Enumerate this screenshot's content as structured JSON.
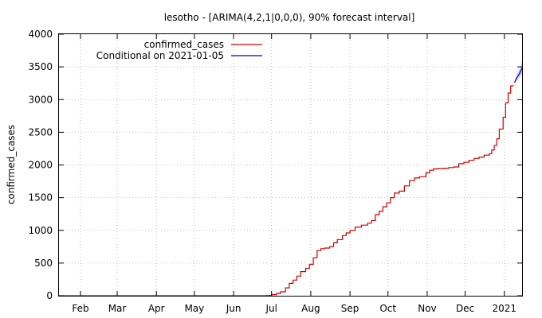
{
  "chart_data": {
    "type": "line",
    "title": "lesotho -  [ARIMA(4,2,1|0,0,0), 90% forecast interval]",
    "xlabel": "",
    "ylabel": "confirmed_cases",
    "ylim": [
      0,
      4000
    ],
    "yticks": [
      0,
      500,
      1000,
      1500,
      2000,
      2500,
      3000,
      3500,
      4000
    ],
    "xlim": [
      "2021-01-15",
      "2021-01-06"
    ],
    "xticks": [
      {
        "label": "Feb",
        "date": "2020-02-01"
      },
      {
        "label": "Mar",
        "date": "2020-03-01"
      },
      {
        "label": "Apr",
        "date": "2020-04-01"
      },
      {
        "label": "May",
        "date": "2020-05-01"
      },
      {
        "label": "Jun",
        "date": "2020-06-01"
      },
      {
        "label": "Jul",
        "date": "2020-07-01"
      },
      {
        "label": "Aug",
        "date": "2020-08-01"
      },
      {
        "label": "Sep",
        "date": "2020-09-01"
      },
      {
        "label": "Oct",
        "date": "2020-10-01"
      },
      {
        "label": "Nov",
        "date": "2020-11-01"
      },
      {
        "label": "Dec",
        "date": "2020-12-01"
      },
      {
        "label": "2021",
        "date": "2021-01-01"
      }
    ],
    "grid": true,
    "legend": "top-left",
    "series": [
      {
        "name": "confirmed_cases",
        "color": "#cc0000",
        "step": true,
        "points": [
          [
            "2020-01-15",
            0
          ],
          [
            "2020-06-20",
            0
          ],
          [
            "2020-06-27",
            4
          ],
          [
            "2020-07-01",
            17
          ],
          [
            "2020-07-05",
            35
          ],
          [
            "2020-07-08",
            60
          ],
          [
            "2020-07-12",
            120
          ],
          [
            "2020-07-15",
            190
          ],
          [
            "2020-07-18",
            240
          ],
          [
            "2020-07-21",
            300
          ],
          [
            "2020-07-24",
            370
          ],
          [
            "2020-07-28",
            420
          ],
          [
            "2020-07-31",
            480
          ],
          [
            "2020-08-03",
            580
          ],
          [
            "2020-08-06",
            690
          ],
          [
            "2020-08-09",
            720
          ],
          [
            "2020-08-12",
            730
          ],
          [
            "2020-08-16",
            750
          ],
          [
            "2020-08-19",
            810
          ],
          [
            "2020-08-22",
            860
          ],
          [
            "2020-08-26",
            920
          ],
          [
            "2020-08-29",
            960
          ],
          [
            "2020-09-01",
            1000
          ],
          [
            "2020-09-05",
            1050
          ],
          [
            "2020-09-10",
            1080
          ],
          [
            "2020-09-15",
            1110
          ],
          [
            "2020-09-18",
            1150
          ],
          [
            "2020-09-21",
            1240
          ],
          [
            "2020-09-24",
            1290
          ],
          [
            "2020-09-27",
            1360
          ],
          [
            "2020-09-30",
            1420
          ],
          [
            "2020-10-03",
            1500
          ],
          [
            "2020-10-06",
            1570
          ],
          [
            "2020-10-10",
            1600
          ],
          [
            "2020-10-14",
            1680
          ],
          [
            "2020-10-18",
            1760
          ],
          [
            "2020-10-22",
            1800
          ],
          [
            "2020-10-26",
            1820
          ],
          [
            "2020-10-31",
            1880
          ],
          [
            "2020-11-03",
            1920
          ],
          [
            "2020-11-06",
            1940
          ],
          [
            "2020-11-10",
            1945
          ],
          [
            "2020-11-14",
            1950
          ],
          [
            "2020-11-18",
            1960
          ],
          [
            "2020-11-22",
            1970
          ],
          [
            "2020-11-26",
            2020
          ],
          [
            "2020-11-30",
            2040
          ],
          [
            "2020-12-04",
            2070
          ],
          [
            "2020-12-08",
            2100
          ],
          [
            "2020-12-12",
            2120
          ],
          [
            "2020-12-16",
            2150
          ],
          [
            "2020-12-20",
            2170
          ],
          [
            "2020-12-22",
            2230
          ],
          [
            "2020-12-24",
            2300
          ],
          [
            "2020-12-26",
            2400
          ],
          [
            "2020-12-28",
            2550
          ],
          [
            "2020-12-31",
            2730
          ],
          [
            "2021-01-02",
            2950
          ],
          [
            "2021-01-04",
            3100
          ],
          [
            "2021-01-06",
            3210
          ],
          [
            "2021-01-08",
            3220
          ]
        ]
      },
      {
        "name": "Conditional on 2021-01-05",
        "color": "#0000cc",
        "points": [
          [
            "2021-01-09",
            3260
          ],
          [
            "2021-01-11",
            3340
          ],
          [
            "2021-01-13",
            3400
          ],
          [
            "2021-01-15",
            3480
          ]
        ],
        "band": [
          [
            "2021-01-09",
            3240,
            3285
          ],
          [
            "2021-01-11",
            3300,
            3390
          ],
          [
            "2021-01-13",
            3340,
            3470
          ],
          [
            "2021-01-15",
            3390,
            3590
          ]
        ]
      }
    ]
  }
}
